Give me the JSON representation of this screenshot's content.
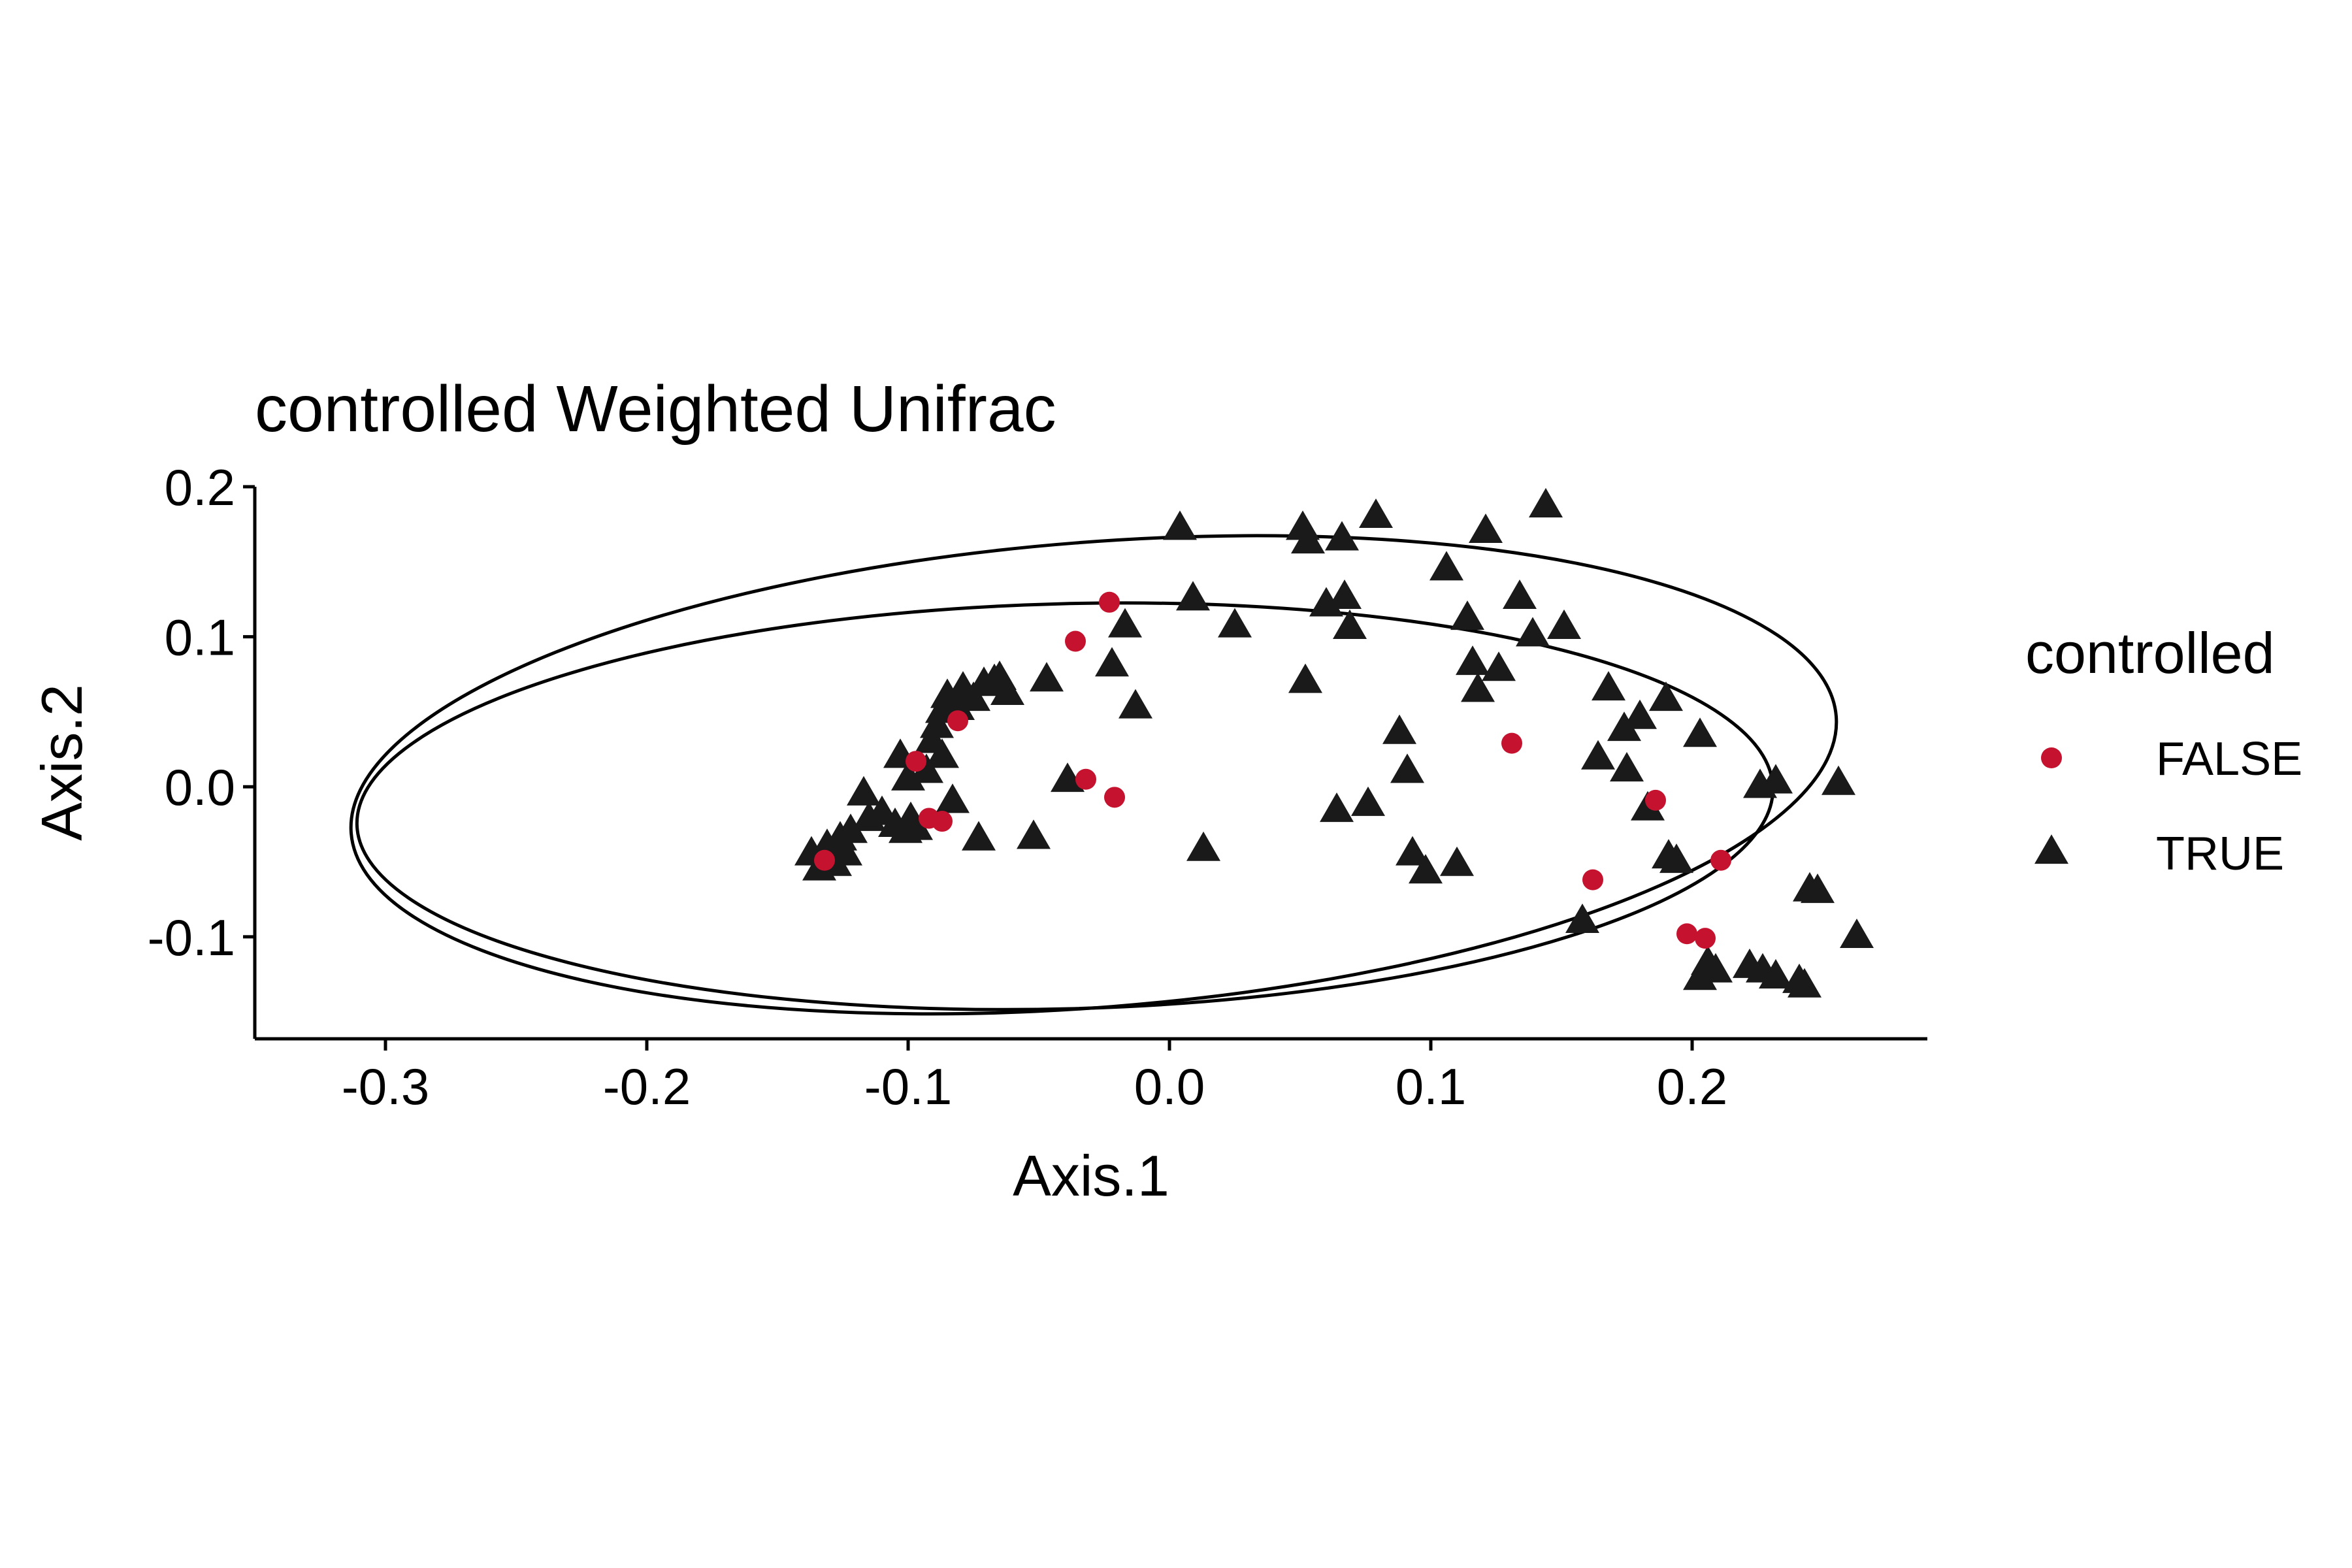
{
  "chart_data": {
    "type": "scatter",
    "title": "controlled Weighted Unifrac",
    "xlabel": "Axis.1",
    "ylabel": "Axis.2",
    "xlim": [
      -0.35,
      0.29
    ],
    "ylim": [
      -0.168,
      0.2
    ],
    "xticks": [
      "-0.3",
      "-0.2",
      "-0.1",
      "0.0",
      "0.1",
      "0.2"
    ],
    "yticks": [
      "-0.1",
      "0.0",
      "0.1",
      "0.2"
    ],
    "grid": false,
    "legend": {
      "title": "controlled",
      "position": "right",
      "entries": [
        {
          "label": "FALSE",
          "shape": "circle",
          "color": "#C4122F"
        },
        {
          "label": "TRUE",
          "shape": "triangle",
          "color": "#1A1A1A"
        }
      ]
    },
    "series": [
      {
        "name": "FALSE",
        "shape": "circle",
        "color": "#C4122F",
        "points": [
          [
            -0.132,
            -0.049
          ],
          [
            -0.097,
            0.017
          ],
          [
            -0.092,
            -0.021
          ],
          [
            -0.087,
            -0.023
          ],
          [
            -0.081,
            0.044
          ],
          [
            -0.036,
            0.097
          ],
          [
            -0.032,
            0.005
          ],
          [
            -0.023,
            0.123
          ],
          [
            -0.021,
            -0.007
          ],
          [
            0.131,
            0.029
          ],
          [
            0.162,
            -0.062
          ],
          [
            0.186,
            -0.009
          ],
          [
            0.198,
            -0.098
          ],
          [
            0.205,
            -0.101
          ],
          [
            0.211,
            -0.049
          ]
        ]
      },
      {
        "name": "TRUE",
        "shape": "triangle",
        "color": "#1A1A1A",
        "points": [
          [
            -0.137,
            -0.045
          ],
          [
            -0.134,
            -0.055
          ],
          [
            -0.131,
            -0.04
          ],
          [
            -0.128,
            -0.052
          ],
          [
            -0.126,
            -0.035
          ],
          [
            -0.124,
            -0.045
          ],
          [
            -0.122,
            -0.03
          ],
          [
            -0.117,
            -0.005
          ],
          [
            -0.115,
            -0.022
          ],
          [
            -0.11,
            -0.018
          ],
          [
            -0.105,
            -0.026
          ],
          [
            -0.103,
            0.02
          ],
          [
            -0.101,
            -0.03
          ],
          [
            -0.099,
            -0.022
          ],
          [
            -0.097,
            -0.028
          ],
          [
            -0.1,
            0.005
          ],
          [
            -0.093,
            0.01
          ],
          [
            -0.091,
            0.03
          ],
          [
            -0.089,
            0.04
          ],
          [
            -0.087,
            0.05
          ],
          [
            -0.085,
            0.06
          ],
          [
            -0.087,
            0.02
          ],
          [
            -0.083,
            -0.01
          ],
          [
            -0.081,
            0.052
          ],
          [
            -0.079,
            0.065
          ],
          [
            -0.075,
            0.058
          ],
          [
            -0.073,
            -0.035
          ],
          [
            -0.071,
            0.068
          ],
          [
            -0.067,
            0.07
          ],
          [
            -0.065,
            0.072
          ],
          [
            -0.062,
            0.062
          ],
          [
            -0.052,
            -0.034
          ],
          [
            -0.047,
            0.071
          ],
          [
            -0.039,
            0.004
          ],
          [
            -0.022,
            0.081
          ],
          [
            -0.017,
            0.107
          ],
          [
            -0.013,
            0.053
          ],
          [
            0.004,
            0.172
          ],
          [
            0.009,
            0.125
          ],
          [
            0.013,
            -0.042
          ],
          [
            0.025,
            0.107
          ],
          [
            0.051,
            0.172
          ],
          [
            0.052,
            0.07
          ],
          [
            0.053,
            0.163
          ],
          [
            0.06,
            0.121
          ],
          [
            0.066,
            0.165
          ],
          [
            0.067,
            0.126
          ],
          [
            0.069,
            0.106
          ],
          [
            0.064,
            -0.016
          ],
          [
            0.076,
            -0.012
          ],
          [
            0.079,
            0.18
          ],
          [
            0.088,
            0.036
          ],
          [
            0.091,
            0.01
          ],
          [
            0.093,
            -0.045
          ],
          [
            0.098,
            -0.057
          ],
          [
            0.11,
            -0.052
          ],
          [
            0.106,
            0.145
          ],
          [
            0.114,
            0.112
          ],
          [
            0.116,
            0.082
          ],
          [
            0.118,
            0.064
          ],
          [
            0.121,
            0.17
          ],
          [
            0.126,
            0.078
          ],
          [
            0.134,
            0.126
          ],
          [
            0.139,
            0.101
          ],
          [
            0.144,
            0.187
          ],
          [
            0.151,
            0.106
          ],
          [
            0.158,
            -0.09
          ],
          [
            0.164,
            0.019
          ],
          [
            0.168,
            0.065
          ],
          [
            0.174,
            0.038
          ],
          [
            0.175,
            0.011
          ],
          [
            0.18,
            0.046
          ],
          [
            0.183,
            -0.015
          ],
          [
            0.19,
            0.058
          ],
          [
            0.191,
            -0.047
          ],
          [
            0.194,
            -0.05
          ],
          [
            0.203,
            -0.128
          ],
          [
            0.206,
            -0.118
          ],
          [
            0.209,
            -0.123
          ],
          [
            0.203,
            0.034
          ],
          [
            0.222,
            -0.12
          ],
          [
            0.227,
            -0.123
          ],
          [
            0.232,
            -0.127
          ],
          [
            0.226,
            0.0
          ],
          [
            0.232,
            0.003
          ],
          [
            0.241,
            -0.13
          ],
          [
            0.243,
            -0.133
          ],
          [
            0.245,
            -0.069
          ],
          [
            0.248,
            -0.07
          ],
          [
            0.256,
            0.002
          ],
          [
            0.263,
            -0.1
          ]
        ]
      }
    ],
    "ellipses": [
      {
        "name": "FALSE",
        "cx": -0.04,
        "cy": -0.013,
        "rx": 0.271,
        "ry": 0.135,
        "rotation_deg": 1.5
      },
      {
        "name": "TRUE",
        "cx": -0.029,
        "cy": 0.008,
        "rx": 0.285,
        "ry": 0.155,
        "rotation_deg": 4.5
      }
    ]
  }
}
